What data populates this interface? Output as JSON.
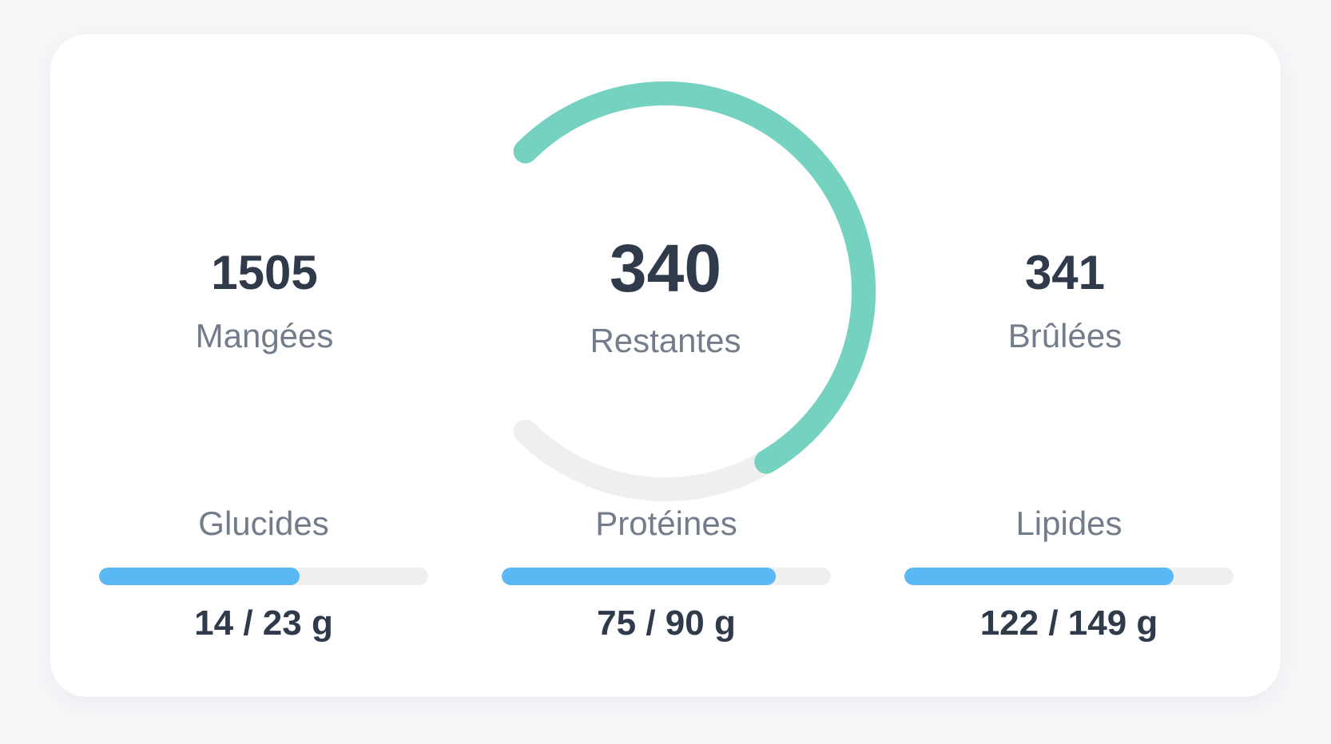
{
  "summary": {
    "eaten": {
      "value": "1505",
      "label": "Mangées"
    },
    "remaining": {
      "value": "340",
      "label": "Restantes"
    },
    "burned": {
      "value": "341",
      "label": "Brûlées"
    }
  },
  "gauge": {
    "progress": 0.72,
    "color": "#76d2c0",
    "track_color": "#efefef"
  },
  "macros": [
    {
      "name": "Glucides",
      "consumed": 14,
      "goal": 23,
      "unit": "g",
      "text": "14 / 23 g"
    },
    {
      "name": "Protéines",
      "consumed": 75,
      "goal": 90,
      "unit": "g",
      "text": "75 / 90 g"
    },
    {
      "name": "Lipides",
      "consumed": 122,
      "goal": 149,
      "unit": "g",
      "text": "122 / 149 g"
    }
  ],
  "colors": {
    "macro_fill": "#5ab8f5",
    "macro_track": "#efefef",
    "text_dark": "#2f3a4b",
    "text_muted": "#737c8a"
  }
}
